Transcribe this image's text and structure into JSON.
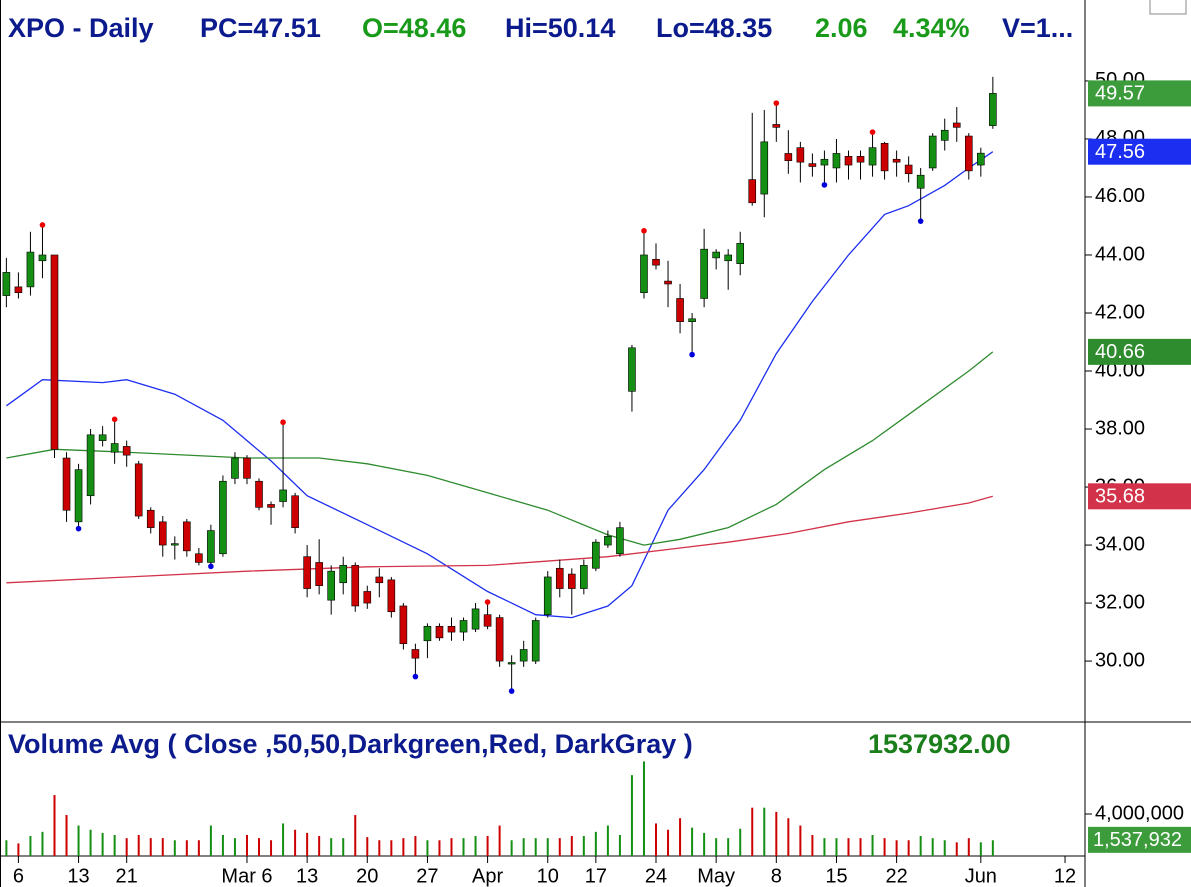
{
  "chart_data": [
    {
      "type": "candlestick",
      "header": [
        {
          "text": "XPO - Daily",
          "color": "#0b1a8c"
        },
        {
          "text": "PC=47.51",
          "color": "#0b1a8c"
        },
        {
          "text": "O=48.46",
          "color": "#1a9a1a"
        },
        {
          "text": "Hi=50.14",
          "color": "#0b1a8c"
        },
        {
          "text": "Lo=48.35",
          "color": "#0b1a8c"
        },
        {
          "text": "2.06",
          "color": "#1a9a1a"
        },
        {
          "text": "4.34%",
          "color": "#1a9a1a"
        },
        {
          "text": "V=1...",
          "color": "#0b1a8c"
        }
      ],
      "open": [
        42.6,
        42.9,
        42.9,
        43.8,
        44.0,
        37.0,
        34.8,
        35.7,
        37.6,
        37.2,
        37.4,
        36.8,
        35.2,
        34.8,
        34.0,
        34.8,
        33.7,
        33.4,
        33.7,
        36.3,
        37.0,
        36.2,
        35.4,
        35.5,
        35.7,
        33.6,
        33.4,
        32.1,
        32.7,
        33.3,
        32.4,
        32.9,
        32.8,
        31.9,
        30.4,
        30.7,
        31.2,
        31.2,
        31.0,
        31.1,
        31.6,
        31.5,
        29.9,
        30.0,
        30.0,
        31.6,
        33.2,
        33.0,
        32.5,
        33.2,
        34.0,
        33.7,
        39.3,
        42.7,
        43.85,
        43.1,
        42.5,
        41.7,
        42.5,
        43.9,
        43.8,
        43.7,
        46.6,
        46.1,
        48.5,
        47.5,
        47.7,
        47.15,
        47.1,
        47.0,
        47.4,
        47.4,
        47.1,
        47.85,
        47.3,
        47.1,
        46.3,
        47.0,
        47.95,
        48.55,
        48.1,
        47.1,
        48.46
      ],
      "high": [
        43.9,
        43.4,
        44.8,
        45.0,
        44.0,
        37.2,
        36.8,
        38.0,
        38.1,
        38.3,
        37.6,
        36.9,
        35.3,
        35.0,
        34.3,
        34.9,
        33.9,
        34.7,
        36.4,
        37.2,
        37.1,
        36.3,
        35.5,
        38.2,
        35.8,
        34.0,
        34.2,
        33.3,
        33.6,
        33.4,
        32.6,
        33.2,
        32.9,
        32.0,
        30.6,
        31.3,
        31.3,
        31.5,
        31.5,
        32.0,
        32.0,
        31.6,
        30.2,
        30.7,
        31.5,
        33.1,
        33.5,
        33.2,
        33.5,
        34.2,
        34.5,
        34.8,
        40.9,
        44.8,
        44.4,
        43.8,
        43.0,
        42.0,
        44.9,
        44.2,
        44.2,
        44.8,
        48.9,
        49.0,
        49.2,
        48.3,
        47.9,
        47.5,
        47.6,
        48.0,
        47.6,
        47.6,
        48.2,
        47.9,
        47.6,
        47.4,
        47.0,
        48.2,
        48.7,
        49.1,
        48.2,
        47.7,
        50.14
      ],
      "low": [
        42.2,
        42.5,
        42.6,
        43.2,
        37.0,
        34.8,
        34.6,
        35.4,
        37.4,
        36.8,
        36.7,
        34.9,
        34.4,
        33.6,
        33.5,
        33.6,
        33.3,
        33.3,
        33.6,
        36.1,
        36.1,
        35.2,
        34.7,
        35.3,
        34.4,
        32.2,
        32.3,
        31.6,
        32.3,
        31.7,
        31.8,
        32.2,
        31.5,
        30.4,
        29.5,
        30.1,
        30.7,
        30.7,
        30.7,
        31.0,
        31.1,
        29.8,
        29.0,
        29.8,
        29.9,
        31.5,
        32.2,
        31.6,
        32.3,
        33.1,
        33.9,
        33.6,
        38.6,
        42.5,
        43.5,
        42.2,
        41.3,
        40.6,
        42.2,
        43.5,
        42.8,
        43.3,
        45.7,
        45.3,
        47.9,
        46.8,
        46.5,
        46.7,
        46.45,
        46.5,
        46.6,
        46.6,
        46.7,
        46.6,
        46.7,
        46.5,
        45.2,
        46.9,
        47.6,
        47.9,
        46.6,
        46.7,
        48.35
      ],
      "close": [
        43.4,
        42.7,
        44.1,
        44.0,
        37.3,
        35.2,
        36.6,
        37.8,
        37.8,
        37.5,
        37.1,
        35.0,
        34.6,
        34.0,
        34.05,
        33.8,
        33.4,
        34.5,
        36.2,
        37.0,
        36.3,
        35.3,
        35.3,
        35.9,
        34.6,
        32.5,
        32.6,
        33.1,
        33.3,
        31.9,
        32.0,
        32.7,
        31.7,
        30.6,
        30.1,
        31.2,
        30.8,
        31.0,
        31.4,
        31.8,
        31.2,
        30.0,
        29.95,
        30.4,
        31.4,
        32.9,
        32.5,
        32.5,
        33.3,
        34.1,
        34.3,
        34.6,
        40.8,
        44.0,
        43.65,
        43.0,
        41.7,
        41.8,
        44.2,
        44.1,
        44.0,
        44.4,
        45.8,
        47.9,
        48.4,
        47.25,
        47.2,
        47.05,
        47.3,
        47.5,
        47.1,
        47.2,
        47.7,
        46.9,
        47.2,
        46.8,
        46.75,
        48.1,
        48.3,
        48.4,
        46.9,
        47.51,
        49.57
      ],
      "up_color": "#148f14",
      "down_color": "#cc0000",
      "last_price_color": "#3c9c3c",
      "pivot_highs": [
        3,
        9,
        23,
        40,
        53,
        64,
        72
      ],
      "pivot_high_color": "#ee0000",
      "pivot_lows": [
        6,
        17,
        34,
        42,
        57,
        68,
        76
      ],
      "pivot_low_color": "#0000dd",
      "series": [
        {
          "color": "#1c2ef0",
          "x": [
            0,
            3,
            8,
            10,
            14,
            18,
            22,
            25,
            30,
            35,
            40,
            44,
            47,
            50,
            52,
            55,
            58,
            61,
            64,
            67,
            70,
            73,
            75,
            78,
            80,
            82
          ],
          "values": [
            38.8,
            39.7,
            39.6,
            39.7,
            39.2,
            38.3,
            36.9,
            35.7,
            34.7,
            33.7,
            32.4,
            31.6,
            31.5,
            31.9,
            32.6,
            35.2,
            36.6,
            38.3,
            40.6,
            42.4,
            44.0,
            45.4,
            45.7,
            46.4,
            47.0,
            47.56
          ]
        },
        {
          "color": "#2e8b2e",
          "x": [
            0,
            4,
            10,
            20,
            26,
            30,
            35,
            40,
            45,
            50,
            53,
            56,
            60,
            64,
            68,
            72,
            76,
            80,
            82
          ],
          "values": [
            37.0,
            37.3,
            37.2,
            37.0,
            37.0,
            36.8,
            36.4,
            35.8,
            35.2,
            34.35,
            34.0,
            34.2,
            34.6,
            35.4,
            36.6,
            37.6,
            38.8,
            40.0,
            40.66
          ]
        },
        {
          "color": "#d2334a",
          "x": [
            0,
            10,
            20,
            30,
            40,
            50,
            56,
            60,
            65,
            70,
            75,
            80,
            82
          ],
          "values": [
            32.7,
            32.9,
            33.1,
            33.25,
            33.3,
            33.6,
            33.9,
            34.1,
            34.4,
            34.8,
            35.1,
            35.45,
            35.68
          ]
        }
      ],
      "xlim": [
        -0.53,
        89.66
      ],
      "xticks": [
        {
          "value": 1,
          "label": "6"
        },
        {
          "value": 6,
          "label": "13"
        },
        {
          "value": 10,
          "label": "21"
        },
        {
          "value": 20,
          "label": "Mar 6"
        },
        {
          "value": 25,
          "label": "13"
        },
        {
          "value": 30,
          "label": "20"
        },
        {
          "value": 35,
          "label": "27"
        },
        {
          "value": 40,
          "label": "Apr"
        },
        {
          "value": 45,
          "label": "10"
        },
        {
          "value": 49,
          "label": "17"
        },
        {
          "value": 54,
          "label": "24"
        },
        {
          "value": 59,
          "label": "May"
        },
        {
          "value": 64,
          "label": "8"
        },
        {
          "value": 69,
          "label": "15"
        },
        {
          "value": 74,
          "label": "22"
        },
        {
          "value": 81,
          "label": "Jun"
        },
        {
          "value": 88,
          "label": "12"
        }
      ],
      "ylim": [
        27.9,
        52.79
      ],
      "yticks": [
        {
          "value": 30,
          "label": "30.00"
        },
        {
          "value": 32,
          "label": "32.00"
        },
        {
          "value": 34,
          "label": "34.00"
        },
        {
          "value": 36,
          "label": "36.00"
        },
        {
          "value": 38,
          "label": "38.00"
        },
        {
          "value": 40,
          "label": "40.00"
        },
        {
          "value": 42,
          "label": "42.00"
        },
        {
          "value": 44,
          "label": "44.00"
        },
        {
          "value": 46,
          "label": "46.00"
        },
        {
          "value": 48,
          "label": "48.00"
        },
        {
          "value": 50,
          "label": "50.00"
        }
      ]
    },
    {
      "type": "volume",
      "title": "Volume Avg ( Close ,50,50,Darkgreen,Red, DarkGray )",
      "average": 1537932,
      "average_label": "1537932.00",
      "average_badge": "1,537,932",
      "average_color": "#1a7f1a",
      "badge_color": "#3c9c3c",
      "values": [
        1500000,
        1200000,
        1900000,
        2300000,
        5800000,
        3900000,
        2900000,
        2500000,
        2200000,
        2000000,
        1700000,
        2000000,
        1700000,
        1700000,
        1500000,
        1500000,
        1500000,
        2900000,
        2000000,
        1700000,
        2000000,
        1700000,
        1500000,
        3100000,
        2500000,
        2200000,
        1900000,
        1700000,
        1700000,
        3900000,
        1800000,
        1500000,
        1500000,
        1700000,
        1900000,
        1500000,
        1500000,
        1700000,
        1700000,
        1900000,
        1900000,
        2900000,
        1500000,
        1700000,
        1700000,
        1700000,
        1700000,
        1900000,
        1900000,
        2300000,
        2900000,
        2000000,
        7700000,
        9000000,
        3100000,
        2500000,
        3600000,
        2700000,
        2200000,
        1700000,
        1700000,
        2600000,
        4600000,
        4600000,
        4200000,
        3600000,
        2900000,
        2000000,
        1700000,
        1700000,
        1700000,
        1700000,
        2000000,
        1700000,
        1500000,
        1500000,
        1900000,
        1700000,
        1500000,
        1300000,
        1700000,
        1300000,
        1500000
      ],
      "ylim": [
        0,
        12760000
      ],
      "yticks": [
        {
          "value": 4000000,
          "label": "4,000,000"
        }
      ]
    }
  ]
}
